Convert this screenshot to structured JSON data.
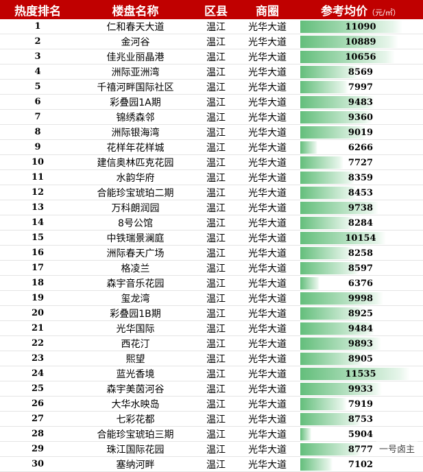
{
  "table": {
    "columns": [
      "热度排名",
      "楼盘名称",
      "区县",
      "商圈",
      "参考均价"
    ],
    "unit": "（元/㎡）",
    "rows": [
      [
        1,
        "仁和春天大道",
        "温江",
        "光华大道",
        11090
      ],
      [
        2,
        "金河谷",
        "温江",
        "光华大道",
        10889
      ],
      [
        3,
        "佳兆业丽晶港",
        "温江",
        "光华大道",
        10656
      ],
      [
        4,
        "洲际亚洲湾",
        "温江",
        "光华大道",
        8569
      ],
      [
        5,
        "千禧河畔国际社区",
        "温江",
        "光华大道",
        7997
      ],
      [
        6,
        "彩叠园1A期",
        "温江",
        "光华大道",
        9483
      ],
      [
        7,
        "锦绣森邻",
        "温江",
        "光华大道",
        9360
      ],
      [
        8,
        "洲际银海湾",
        "温江",
        "光华大道",
        9019
      ],
      [
        9,
        "花样年花样城",
        "温江",
        "光华大道",
        6266
      ],
      [
        10,
        "建信奥林匹克花园",
        "温江",
        "光华大道",
        7727
      ],
      [
        11,
        "水韵华府",
        "温江",
        "光华大道",
        8359
      ],
      [
        12,
        "合能珍宝琥珀二期",
        "温江",
        "光华大道",
        8453
      ],
      [
        13,
        "万科朗润园",
        "温江",
        "光华大道",
        9738
      ],
      [
        14,
        "8号公馆",
        "温江",
        "光华大道",
        8284
      ],
      [
        15,
        "中铁瑞景澜庭",
        "温江",
        "光华大道",
        10154
      ],
      [
        16,
        "洲际春天广场",
        "温江",
        "光华大道",
        8258
      ],
      [
        17,
        "格凌兰",
        "温江",
        "光华大道",
        8597
      ],
      [
        18,
        "森宇音乐花园",
        "温江",
        "光华大道",
        6376
      ],
      [
        19,
        "玺龙湾",
        "温江",
        "光华大道",
        9998
      ],
      [
        20,
        "彩叠园1B期",
        "温江",
        "光华大道",
        8925
      ],
      [
        21,
        "光华国际",
        "温江",
        "光华大道",
        9484
      ],
      [
        22,
        "西花汀",
        "温江",
        "光华大道",
        9893
      ],
      [
        23,
        "熙望",
        "温江",
        "光华大道",
        8905
      ],
      [
        24,
        "蓝光香境",
        "温江",
        "光华大道",
        11535
      ],
      [
        25,
        "森宇美茵河谷",
        "温江",
        "光华大道",
        9933
      ],
      [
        26,
        "大华水映岛",
        "温江",
        "光华大道",
        7919
      ],
      [
        27,
        "七彩花都",
        "温江",
        "光华大道",
        8753
      ],
      [
        28,
        "合能珍宝琥珀三期",
        "温江",
        "光华大道",
        5904
      ],
      [
        29,
        "珠江国际花园",
        "温江",
        "光华大道",
        8777
      ],
      [
        30,
        "塞纳河畔",
        "温江",
        "光华大道",
        7102
      ]
    ]
  },
  "watermark": "一号卤主"
}
